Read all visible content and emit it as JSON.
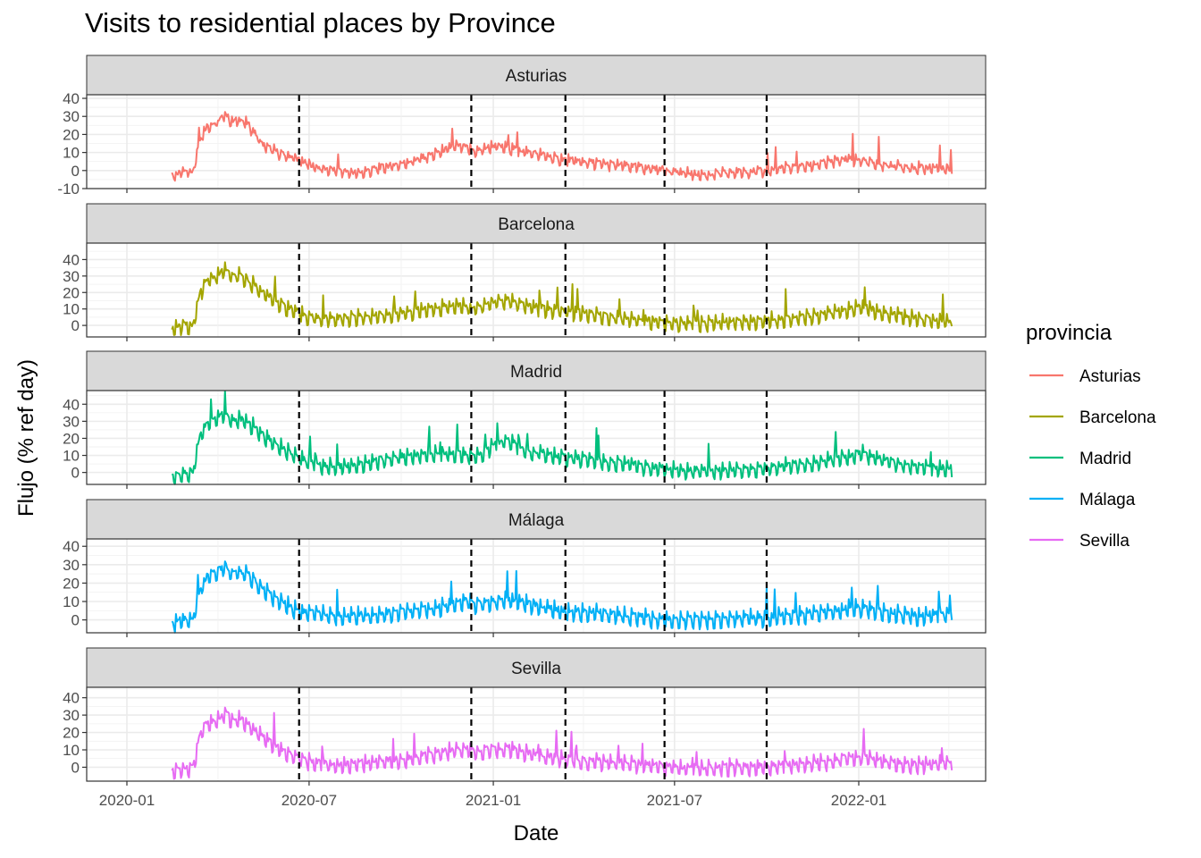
{
  "title": "Visits to residential places by Province",
  "chart_data": {
    "type": "line",
    "title": "Visits to residential places by Province",
    "xlabel": "Date",
    "ylabel": "Flujo (% ref day)",
    "x_ticks": [
      "2020-01",
      "2020-07",
      "2021-01",
      "2021-07",
      "2022-01"
    ],
    "xlim": [
      "2020-01-01",
      "2022-04-30"
    ],
    "grid": true,
    "legend": {
      "title": "provincia",
      "position": "right"
    },
    "vlines": [
      "2020-06-21",
      "2020-12-10",
      "2021-03-14",
      "2021-06-21",
      "2021-10-01"
    ],
    "facets": [
      {
        "name": "Asturias",
        "color": "#F8766D",
        "ylim": [
          -10,
          42
        ],
        "y_ticks": [
          -10,
          0,
          10,
          20,
          30,
          40
        ],
        "points": [
          [
            "2020-02-15",
            -2
          ],
          [
            "2020-02-22",
            -1
          ],
          [
            "2020-02-29",
            1
          ],
          [
            "2020-03-07",
            0
          ],
          [
            "2020-03-14",
            18
          ],
          [
            "2020-03-21",
            25
          ],
          [
            "2020-04-01",
            27
          ],
          [
            "2020-04-08",
            32
          ],
          [
            "2020-04-15",
            27
          ],
          [
            "2020-04-22",
            29
          ],
          [
            "2020-05-01",
            26
          ],
          [
            "2020-05-08",
            21
          ],
          [
            "2020-05-15",
            15
          ],
          [
            "2020-05-25",
            12
          ],
          [
            "2020-06-05",
            9
          ],
          [
            "2020-06-15",
            8
          ],
          [
            "2020-06-25",
            5
          ],
          [
            "2020-07-10",
            2
          ],
          [
            "2020-08-01",
            0
          ],
          [
            "2020-08-20",
            -1
          ],
          [
            "2020-09-10",
            2
          ],
          [
            "2020-09-30",
            4
          ],
          [
            "2020-10-20",
            7
          ],
          [
            "2020-11-10",
            11
          ],
          [
            "2020-11-25",
            14
          ],
          [
            "2020-12-05",
            13
          ],
          [
            "2020-12-15",
            11
          ],
          [
            "2020-12-31",
            14
          ],
          [
            "2021-01-15",
            13
          ],
          [
            "2021-02-01",
            11
          ],
          [
            "2021-02-20",
            9
          ],
          [
            "2021-03-05",
            7
          ],
          [
            "2021-03-20",
            6
          ],
          [
            "2021-04-05",
            5
          ],
          [
            "2021-04-25",
            4
          ],
          [
            "2021-05-15",
            3
          ],
          [
            "2021-06-01",
            2
          ],
          [
            "2021-06-21",
            1
          ],
          [
            "2021-07-10",
            -1
          ],
          [
            "2021-08-01",
            -2
          ],
          [
            "2021-08-20",
            -1
          ],
          [
            "2021-09-10",
            0
          ],
          [
            "2021-10-01",
            0
          ],
          [
            "2021-10-20",
            2
          ],
          [
            "2021-11-10",
            3
          ],
          [
            "2021-12-01",
            5
          ],
          [
            "2021-12-20",
            7
          ],
          [
            "2022-01-05",
            6
          ],
          [
            "2022-01-20",
            4
          ],
          [
            "2022-02-10",
            3
          ],
          [
            "2022-03-01",
            2
          ],
          [
            "2022-03-20",
            2
          ],
          [
            "2022-04-05",
            1
          ]
        ]
      },
      {
        "name": "Barcelona",
        "color": "#A3A500",
        "ylim": [
          -7,
          50
        ],
        "y_ticks": [
          0,
          10,
          20,
          30,
          40
        ],
        "points": [
          [
            "2020-02-15",
            -1
          ],
          [
            "2020-02-22",
            0
          ],
          [
            "2020-02-29",
            1
          ],
          [
            "2020-03-07",
            0
          ],
          [
            "2020-03-14",
            20
          ],
          [
            "2020-03-21",
            28
          ],
          [
            "2020-04-01",
            31
          ],
          [
            "2020-04-08",
            35
          ],
          [
            "2020-04-15",
            30
          ],
          [
            "2020-04-22",
            31
          ],
          [
            "2020-05-01",
            28
          ],
          [
            "2020-05-08",
            25
          ],
          [
            "2020-05-15",
            21
          ],
          [
            "2020-05-25",
            17
          ],
          [
            "2020-06-05",
            13
          ],
          [
            "2020-06-15",
            10
          ],
          [
            "2020-06-25",
            7
          ],
          [
            "2020-07-10",
            5
          ],
          [
            "2020-08-01",
            5
          ],
          [
            "2020-08-20",
            6
          ],
          [
            "2020-09-10",
            7
          ],
          [
            "2020-09-30",
            8
          ],
          [
            "2020-10-20",
            10
          ],
          [
            "2020-11-10",
            12
          ],
          [
            "2020-11-25",
            13
          ],
          [
            "2020-12-05",
            12
          ],
          [
            "2020-12-15",
            11
          ],
          [
            "2020-12-31",
            15
          ],
          [
            "2021-01-15",
            16
          ],
          [
            "2021-02-01",
            13
          ],
          [
            "2021-02-20",
            11
          ],
          [
            "2021-03-05",
            10
          ],
          [
            "2021-03-20",
            9
          ],
          [
            "2021-04-05",
            8
          ],
          [
            "2021-04-25",
            6
          ],
          [
            "2021-05-15",
            5
          ],
          [
            "2021-06-01",
            4
          ],
          [
            "2021-06-21",
            3
          ],
          [
            "2021-07-10",
            2
          ],
          [
            "2021-08-01",
            2
          ],
          [
            "2021-08-20",
            3
          ],
          [
            "2021-09-10",
            3
          ],
          [
            "2021-10-01",
            4
          ],
          [
            "2021-10-20",
            5
          ],
          [
            "2021-11-10",
            6
          ],
          [
            "2021-12-01",
            8
          ],
          [
            "2021-12-20",
            10
          ],
          [
            "2022-01-05",
            12
          ],
          [
            "2022-01-20",
            9
          ],
          [
            "2022-02-10",
            7
          ],
          [
            "2022-03-01",
            5
          ],
          [
            "2022-03-20",
            4
          ],
          [
            "2022-04-05",
            3
          ]
        ]
      },
      {
        "name": "Madrid",
        "color": "#00BF7D",
        "ylim": [
          -7,
          48
        ],
        "y_ticks": [
          0,
          10,
          20,
          30,
          40
        ],
        "points": [
          [
            "2020-02-15",
            -2
          ],
          [
            "2020-02-22",
            -1
          ],
          [
            "2020-02-29",
            0
          ],
          [
            "2020-03-07",
            1
          ],
          [
            "2020-03-14",
            22
          ],
          [
            "2020-03-21",
            30
          ],
          [
            "2020-04-01",
            33
          ],
          [
            "2020-04-08",
            36
          ],
          [
            "2020-04-15",
            31
          ],
          [
            "2020-04-22",
            32
          ],
          [
            "2020-05-01",
            30
          ],
          [
            "2020-05-08",
            27
          ],
          [
            "2020-05-15",
            23
          ],
          [
            "2020-05-25",
            19
          ],
          [
            "2020-06-05",
            15
          ],
          [
            "2020-06-15",
            11
          ],
          [
            "2020-06-25",
            8
          ],
          [
            "2020-07-10",
            5
          ],
          [
            "2020-08-01",
            4
          ],
          [
            "2020-08-20",
            5
          ],
          [
            "2020-09-10",
            8
          ],
          [
            "2020-09-30",
            10
          ],
          [
            "2020-10-20",
            11
          ],
          [
            "2020-11-10",
            12
          ],
          [
            "2020-11-25",
            12
          ],
          [
            "2020-12-05",
            11
          ],
          [
            "2020-12-15",
            10
          ],
          [
            "2020-12-31",
            16
          ],
          [
            "2021-01-15",
            20
          ],
          [
            "2021-02-01",
            14
          ],
          [
            "2021-02-20",
            12
          ],
          [
            "2021-03-05",
            10
          ],
          [
            "2021-03-20",
            9
          ],
          [
            "2021-04-05",
            9
          ],
          [
            "2021-04-25",
            7
          ],
          [
            "2021-05-15",
            6
          ],
          [
            "2021-06-01",
            4
          ],
          [
            "2021-06-21",
            3
          ],
          [
            "2021-07-10",
            2
          ],
          [
            "2021-08-01",
            2
          ],
          [
            "2021-08-20",
            2
          ],
          [
            "2021-09-10",
            3
          ],
          [
            "2021-10-01",
            3
          ],
          [
            "2021-10-20",
            5
          ],
          [
            "2021-11-10",
            6
          ],
          [
            "2021-12-01",
            8
          ],
          [
            "2021-12-20",
            10
          ],
          [
            "2022-01-05",
            12
          ],
          [
            "2022-01-20",
            9
          ],
          [
            "2022-02-10",
            6
          ],
          [
            "2022-03-01",
            4
          ],
          [
            "2022-03-20",
            3
          ],
          [
            "2022-04-05",
            3
          ]
        ]
      },
      {
        "name": "Málaga",
        "color": "#00B0F6",
        "ylim": [
          -7,
          44
        ],
        "y_ticks": [
          0,
          10,
          20,
          30,
          40
        ],
        "points": [
          [
            "2020-02-15",
            -1
          ],
          [
            "2020-02-22",
            0
          ],
          [
            "2020-02-29",
            1
          ],
          [
            "2020-03-07",
            0
          ],
          [
            "2020-03-14",
            17
          ],
          [
            "2020-03-21",
            24
          ],
          [
            "2020-04-01",
            27
          ],
          [
            "2020-04-08",
            30
          ],
          [
            "2020-04-15",
            26
          ],
          [
            "2020-04-22",
            27
          ],
          [
            "2020-05-01",
            25
          ],
          [
            "2020-05-08",
            22
          ],
          [
            "2020-05-15",
            18
          ],
          [
            "2020-05-25",
            14
          ],
          [
            "2020-06-05",
            10
          ],
          [
            "2020-06-15",
            7
          ],
          [
            "2020-06-25",
            5
          ],
          [
            "2020-07-10",
            4
          ],
          [
            "2020-08-01",
            3
          ],
          [
            "2020-08-20",
            3
          ],
          [
            "2020-09-10",
            4
          ],
          [
            "2020-09-30",
            5
          ],
          [
            "2020-10-20",
            6
          ],
          [
            "2020-11-10",
            8
          ],
          [
            "2020-11-25",
            10
          ],
          [
            "2020-12-05",
            11
          ],
          [
            "2020-12-15",
            9
          ],
          [
            "2020-12-31",
            11
          ],
          [
            "2021-01-15",
            12
          ],
          [
            "2021-02-01",
            10
          ],
          [
            "2021-02-20",
            8
          ],
          [
            "2021-03-05",
            6
          ],
          [
            "2021-03-20",
            5
          ],
          [
            "2021-04-05",
            5
          ],
          [
            "2021-04-25",
            4
          ],
          [
            "2021-05-15",
            3
          ],
          [
            "2021-06-01",
            2
          ],
          [
            "2021-06-21",
            1
          ],
          [
            "2021-07-10",
            1
          ],
          [
            "2021-08-01",
            1
          ],
          [
            "2021-08-20",
            2
          ],
          [
            "2021-09-10",
            2
          ],
          [
            "2021-10-01",
            2
          ],
          [
            "2021-10-20",
            3
          ],
          [
            "2021-11-10",
            4
          ],
          [
            "2021-12-01",
            5
          ],
          [
            "2021-12-20",
            7
          ],
          [
            "2022-01-05",
            7
          ],
          [
            "2022-01-20",
            6
          ],
          [
            "2022-02-10",
            4
          ],
          [
            "2022-03-01",
            3
          ],
          [
            "2022-03-20",
            4
          ],
          [
            "2022-04-05",
            4
          ]
        ]
      },
      {
        "name": "Sevilla",
        "color": "#E76BF3",
        "ylim": [
          -8,
          46
        ],
        "y_ticks": [
          0,
          10,
          20,
          30,
          40
        ],
        "points": [
          [
            "2020-02-15",
            -2
          ],
          [
            "2020-02-22",
            -1
          ],
          [
            "2020-02-29",
            0
          ],
          [
            "2020-03-07",
            0
          ],
          [
            "2020-03-14",
            19
          ],
          [
            "2020-03-21",
            26
          ],
          [
            "2020-04-01",
            28
          ],
          [
            "2020-04-08",
            32
          ],
          [
            "2020-04-15",
            28
          ],
          [
            "2020-04-22",
            29
          ],
          [
            "2020-05-01",
            26
          ],
          [
            "2020-05-08",
            22
          ],
          [
            "2020-05-15",
            18
          ],
          [
            "2020-05-25",
            14
          ],
          [
            "2020-06-05",
            10
          ],
          [
            "2020-06-15",
            7
          ],
          [
            "2020-06-25",
            5
          ],
          [
            "2020-07-10",
            3
          ],
          [
            "2020-08-01",
            2
          ],
          [
            "2020-08-20",
            3
          ],
          [
            "2020-09-10",
            4
          ],
          [
            "2020-09-30",
            5
          ],
          [
            "2020-10-20",
            7
          ],
          [
            "2020-11-10",
            9
          ],
          [
            "2020-11-25",
            11
          ],
          [
            "2020-12-05",
            11
          ],
          [
            "2020-12-15",
            10
          ],
          [
            "2020-12-31",
            11
          ],
          [
            "2021-01-15",
            12
          ],
          [
            "2021-02-01",
            9
          ],
          [
            "2021-02-20",
            7
          ],
          [
            "2021-03-05",
            6
          ],
          [
            "2021-03-20",
            5
          ],
          [
            "2021-04-05",
            4
          ],
          [
            "2021-04-25",
            4
          ],
          [
            "2021-05-15",
            3
          ],
          [
            "2021-06-01",
            2
          ],
          [
            "2021-06-21",
            1
          ],
          [
            "2021-07-10",
            0
          ],
          [
            "2021-08-01",
            0
          ],
          [
            "2021-08-20",
            1
          ],
          [
            "2021-09-10",
            1
          ],
          [
            "2021-10-01",
            1
          ],
          [
            "2021-10-20",
            2
          ],
          [
            "2021-11-10",
            3
          ],
          [
            "2021-12-01",
            4
          ],
          [
            "2021-12-20",
            6
          ],
          [
            "2022-01-05",
            7
          ],
          [
            "2022-01-20",
            5
          ],
          [
            "2022-02-10",
            3
          ],
          [
            "2022-03-01",
            2
          ],
          [
            "2022-03-20",
            3
          ],
          [
            "2022-04-05",
            3
          ]
        ]
      }
    ]
  }
}
